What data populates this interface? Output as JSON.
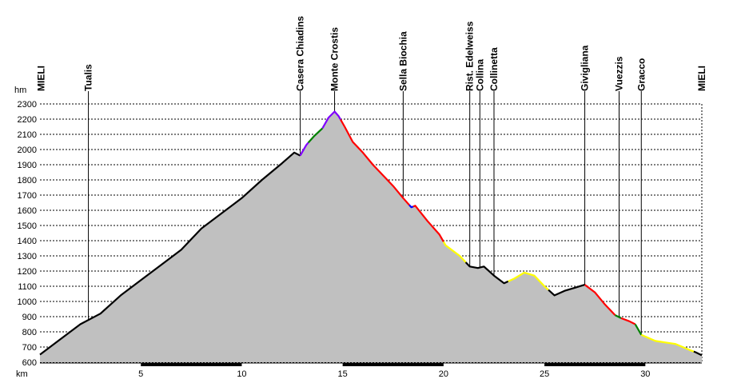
{
  "chart_data": {
    "type": "area",
    "y_unit": "hm",
    "x_unit": "km",
    "xlim": [
      0,
      32.8
    ],
    "ylim": [
      600,
      2300
    ],
    "y_ticks": [
      600,
      700,
      800,
      900,
      1000,
      1100,
      1200,
      1300,
      1400,
      1500,
      1600,
      1700,
      1800,
      1900,
      2000,
      2100,
      2200,
      2300
    ],
    "x_ticks": [
      5,
      10,
      15,
      20,
      25,
      30
    ],
    "grid": true,
    "fill_color": "#c0c0c0",
    "difficulty_colors": {
      "black": "#000000",
      "purple": "#8000ff",
      "green": "#008000",
      "red": "#ff0000",
      "blue": "#0000ff",
      "yellow": "#ffff00"
    },
    "profile": [
      [
        0,
        650
      ],
      [
        1,
        750
      ],
      [
        2,
        850
      ],
      [
        3,
        920
      ],
      [
        4,
        1040
      ],
      [
        5,
        1140
      ],
      [
        6,
        1240
      ],
      [
        7,
        1340
      ],
      [
        8,
        1480
      ],
      [
        9,
        1580
      ],
      [
        10,
        1680
      ],
      [
        11,
        1800
      ],
      [
        12,
        1910
      ],
      [
        12.6,
        1980
      ],
      [
        12.9,
        1960
      ],
      [
        13.2,
        2030
      ],
      [
        13.6,
        2090
      ],
      [
        14.0,
        2140
      ],
      [
        14.3,
        2210
      ],
      [
        14.6,
        2250
      ],
      [
        14.8,
        2220
      ],
      [
        15.1,
        2150
      ],
      [
        15.5,
        2050
      ],
      [
        16.0,
        1980
      ],
      [
        16.5,
        1900
      ],
      [
        17.0,
        1830
      ],
      [
        17.5,
        1760
      ],
      [
        18.0,
        1680
      ],
      [
        18.4,
        1620
      ],
      [
        18.6,
        1630
      ],
      [
        19.2,
        1530
      ],
      [
        19.8,
        1440
      ],
      [
        20.1,
        1370
      ],
      [
        20.8,
        1300
      ],
      [
        21.3,
        1230
      ],
      [
        21.7,
        1220
      ],
      [
        22.0,
        1230
      ],
      [
        22.5,
        1170
      ],
      [
        23.0,
        1120
      ],
      [
        23.5,
        1150
      ],
      [
        24.0,
        1190
      ],
      [
        24.5,
        1170
      ],
      [
        25.0,
        1100
      ],
      [
        25.5,
        1040
      ],
      [
        26.0,
        1070
      ],
      [
        26.5,
        1090
      ],
      [
        27.0,
        1110
      ],
      [
        27.5,
        1060
      ],
      [
        28.0,
        980
      ],
      [
        28.5,
        910
      ],
      [
        28.8,
        890
      ],
      [
        29.2,
        870
      ],
      [
        29.5,
        850
      ],
      [
        29.8,
        780
      ],
      [
        30.5,
        740
      ],
      [
        31.0,
        730
      ],
      [
        31.5,
        720
      ],
      [
        32.2,
        680
      ],
      [
        32.5,
        665
      ],
      [
        32.8,
        645
      ]
    ],
    "segments": [
      {
        "color": "black",
        "from": 0,
        "to": 12.9
      },
      {
        "color": "purple",
        "from": 12.9,
        "to": 13.3
      },
      {
        "color": "green",
        "from": 13.3,
        "to": 14.0
      },
      {
        "color": "purple",
        "from": 14.0,
        "to": 14.9
      },
      {
        "color": "red",
        "from": 14.9,
        "to": 18.3
      },
      {
        "color": "blue",
        "from": 18.3,
        "to": 18.5
      },
      {
        "color": "red",
        "from": 18.5,
        "to": 20.0
      },
      {
        "color": "yellow",
        "from": 20.0,
        "to": 21.1
      },
      {
        "color": "black",
        "from": 21.1,
        "to": 23.2
      },
      {
        "color": "yellow",
        "from": 23.2,
        "to": 25.2
      },
      {
        "color": "black",
        "from": 25.2,
        "to": 27.0
      },
      {
        "color": "red",
        "from": 27.0,
        "to": 28.5
      },
      {
        "color": "green",
        "from": 28.5,
        "to": 28.8
      },
      {
        "color": "red",
        "from": 28.8,
        "to": 29.5
      },
      {
        "color": "green",
        "from": 29.5,
        "to": 29.8
      },
      {
        "color": "yellow",
        "from": 29.8,
        "to": 32.4
      },
      {
        "color": "black",
        "from": 32.4,
        "to": 32.8
      }
    ],
    "waypoints": [
      {
        "name": "MIELI",
        "km": 0.05,
        "line": false
      },
      {
        "name": "Tualis",
        "km": 2.4,
        "line": true
      },
      {
        "name": "Casera Chiadins",
        "km": 12.9,
        "line": true
      },
      {
        "name": "Monte Crostis",
        "km": 14.6,
        "line": true
      },
      {
        "name": "Sella Biochia",
        "km": 18.0,
        "line": true
      },
      {
        "name": "Rist. Edelweiss",
        "km": 21.3,
        "line": true
      },
      {
        "name": "Collina",
        "km": 21.8,
        "line": true
      },
      {
        "name": "Collinetta",
        "km": 22.5,
        "line": true
      },
      {
        "name": "Givigliana",
        "km": 27.0,
        "line": true
      },
      {
        "name": "Vuezzis",
        "km": 28.7,
        "line": true
      },
      {
        "name": "Gracco",
        "km": 29.8,
        "line": true
      },
      {
        "name": "MIELI",
        "km": 32.8,
        "line": false
      }
    ]
  }
}
